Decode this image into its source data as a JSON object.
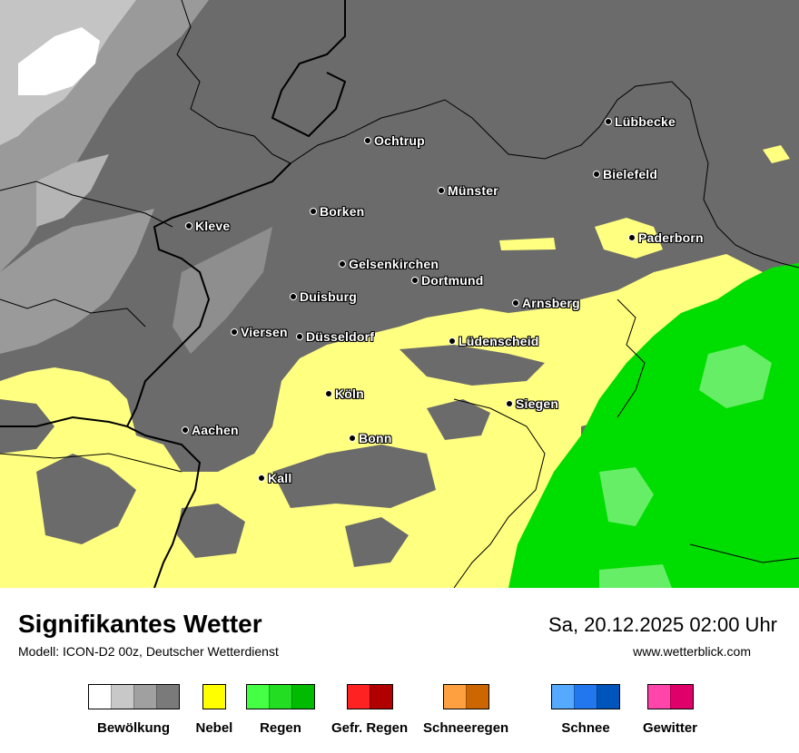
{
  "title": "Signifikantes Wetter",
  "subtitle": "Modell: ICON-D2 00z, Deutscher Wetterdienst",
  "datetime": "Sa, 20.12.2025 02:00 Uhr",
  "website": "www.wetterblick.com",
  "cities": [
    {
      "name": "Lübbecke"
    },
    {
      "name": "Ochtrup"
    },
    {
      "name": "Bielefeld"
    },
    {
      "name": "Münster"
    },
    {
      "name": "Borken"
    },
    {
      "name": "Kleve"
    },
    {
      "name": "Paderborn"
    },
    {
      "name": "Gelsenkirchen"
    },
    {
      "name": "Dortmund"
    },
    {
      "name": "Duisburg"
    },
    {
      "name": "Arnsberg"
    },
    {
      "name": "Viersen"
    },
    {
      "name": "Düsseldorf"
    },
    {
      "name": "Lüdenscheid"
    },
    {
      "name": "Köln"
    },
    {
      "name": "Siegen"
    },
    {
      "name": "Aachen"
    },
    {
      "name": "Bonn"
    },
    {
      "name": "Kall"
    }
  ],
  "legend": [
    {
      "label": "Bewölkung",
      "colors": [
        "#ffffff",
        "#c8c8c8",
        "#a0a0a0",
        "#7a7a7a"
      ]
    },
    {
      "label": "Nebel",
      "colors": [
        "#ffff00"
      ]
    },
    {
      "label": "Regen",
      "colors": [
        "#44ff44",
        "#22dd22",
        "#00bb00"
      ]
    },
    {
      "label": "Gefr. Regen",
      "colors": [
        "#ff2222",
        "#b00000"
      ]
    },
    {
      "label": "Schneeregen",
      "colors": [
        "#ffa040",
        "#cc6600"
      ]
    },
    {
      "label": "Schnee",
      "colors": [
        "#55aaff",
        "#2277ee",
        "#0055bb"
      ]
    },
    {
      "label": "Gewitter",
      "colors": [
        "#ff44aa",
        "#e0006a"
      ]
    }
  ],
  "colors": {
    "cloud_dark": "#6b6b6b",
    "cloud_mid": "#9a9a9a",
    "cloud_light": "#c4c4c4",
    "clear": "#ffffff",
    "fog": "#ffff80",
    "rain": "#00dd00",
    "rain_light": "#66ee66",
    "border": "#000000"
  }
}
